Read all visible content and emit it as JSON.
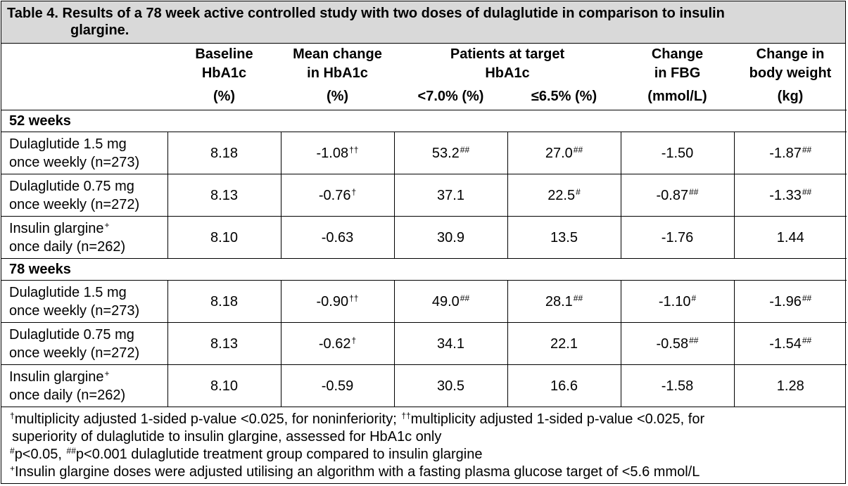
{
  "title": {
    "line1": "Table 4. Results of a 78 week active controlled study with two doses of dulaglutide in comparison to insulin",
    "line2": "glargine."
  },
  "header": {
    "baseline": {
      "l1": "Baseline",
      "l2": "HbA1c",
      "unit": "(%)"
    },
    "mean_change": {
      "l1": "Mean change",
      "l2": "in HbA1c",
      "unit": "(%)"
    },
    "target": {
      "l1": "Patients at target",
      "l2": "HbA1c",
      "unit_a": "<7.0% (%)",
      "unit_b": "≤6.5% (%)"
    },
    "fbg": {
      "l1": "Change",
      "l2": "in FBG",
      "unit": "(mmol/L)"
    },
    "weight": {
      "l1": "Change in",
      "l2": "body weight",
      "unit": "(kg)"
    }
  },
  "sections": [
    {
      "label": "52 weeks",
      "rows": [
        {
          "l1": "Dulaglutide 1.5 mg",
          "l2": "once weekly (n=273)",
          "l1_sup": "",
          "baseline": "8.18",
          "mean": "-1.08",
          "mean_sup": "††",
          "t7": "53.2",
          "t7_sup": "##",
          "t65": "27.0",
          "t65_sup": "##",
          "fbg": "-1.50",
          "fbg_sup": "",
          "wt": "-1.87",
          "wt_sup": "##"
        },
        {
          "l1": "Dulaglutide 0.75 mg",
          "l2": "once weekly (n=272)",
          "l1_sup": "",
          "baseline": "8.13",
          "mean": "-0.76",
          "mean_sup": "†",
          "t7": "37.1",
          "t7_sup": "",
          "t65": "22.5",
          "t65_sup": "#",
          "fbg": "-0.87",
          "fbg_sup": "##",
          "wt": "-1.33",
          "wt_sup": "##"
        },
        {
          "l1": "Insulin glargine",
          "l2": "once daily (n=262)",
          "l1_sup": "+",
          "baseline": "8.10",
          "mean": "-0.63",
          "mean_sup": "",
          "t7": "30.9",
          "t7_sup": "",
          "t65": "13.5",
          "t65_sup": "",
          "fbg": "-1.76",
          "fbg_sup": "",
          "wt": "1.44",
          "wt_sup": ""
        }
      ]
    },
    {
      "label": "78 weeks",
      "rows": [
        {
          "l1": "Dulaglutide 1.5 mg",
          "l2": "once weekly (n=273)",
          "l1_sup": "",
          "baseline": "8.18",
          "mean": "-0.90",
          "mean_sup": "††",
          "t7": "49.0",
          "t7_sup": "##",
          "t65": "28.1",
          "t65_sup": "##",
          "fbg": "-1.10",
          "fbg_sup": "#",
          "wt": "-1.96",
          "wt_sup": "##"
        },
        {
          "l1": "Dulaglutide 0.75 mg",
          "l2": "once weekly (n=272)",
          "l1_sup": "",
          "baseline": "8.13",
          "mean": "-0.62",
          "mean_sup": "†",
          "t7": "34.1",
          "t7_sup": "",
          "t65": "22.1",
          "t65_sup": "",
          "fbg": "-0.58",
          "fbg_sup": "##",
          "wt": "-1.54",
          "wt_sup": "##"
        },
        {
          "l1": "Insulin glargine",
          "l2": "once daily (n=262)",
          "l1_sup": "+",
          "baseline": "8.10",
          "mean": "-0.59",
          "mean_sup": "",
          "t7": "30.5",
          "t7_sup": "",
          "t65": "16.6",
          "t65_sup": "",
          "fbg": "-1.58",
          "fbg_sup": "",
          "wt": "1.28",
          "wt_sup": ""
        }
      ]
    }
  ],
  "footnotes": {
    "f1_sup": "†",
    "f1_a": "multiplicity adjusted 1-sided p-value <0.025, for noninferiority; ",
    "f1_sup2": "††",
    "f1_b": "multiplicity adjusted 1-sided p-value <0.025, for",
    "f1_c": "superiority of dulaglutide to insulin glargine, assessed for HbA1c only",
    "f2_sup": "#",
    "f2_a": "p<0.05, ",
    "f2_sup2": "##",
    "f2_b": "p<0.001 dulaglutide treatment group compared to insulin glargine",
    "f3_sup": "+",
    "f3_a": "Insulin glargine doses were adjusted utilising an algorithm with a fasting plasma glucose target of <5.6 mmol/L"
  }
}
